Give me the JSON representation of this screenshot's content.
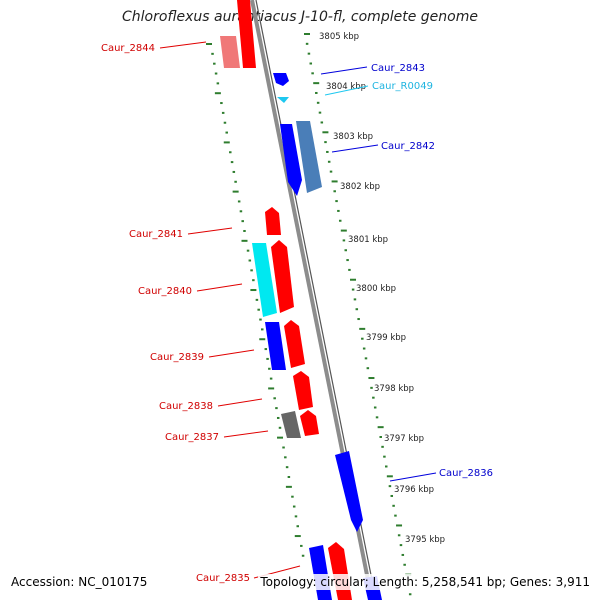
{
  "title": "Chloroflexus aurantiacus J-10-fl, complete genome",
  "footer": {
    "accession": "Accession: NC_010175",
    "topology": "Topology: circular; Length: 5,258,541 bp; Genes: 3,911"
  },
  "colors": {
    "backbone": "#888888",
    "ticks": "#2e7d2e",
    "forward_gene": "#ff0000",
    "reverse_gene": "#0000ff",
    "rna_gene": "#1ec8f0",
    "pseudo_gene": "#666666"
  },
  "kbp_labels": [
    "3805 kbp",
    "3804 kbp",
    "3803 kbp",
    "3802 kbp",
    "3801 kbp",
    "3800 kbp",
    "3799 kbp",
    "3798 kbp",
    "3797 kbp",
    "3796 kbp",
    "3795 kbp"
  ],
  "genes": [
    {
      "name": "Caur_2844",
      "strand": "forward",
      "color": "#ff0000"
    },
    {
      "name": "Caur_2843",
      "strand": "reverse",
      "color": "#0000ff"
    },
    {
      "name": "Caur_R0049",
      "strand": "reverse",
      "color": "#1ec8f0"
    },
    {
      "name": "Caur_2842",
      "strand": "reverse",
      "color": "#0000ff"
    },
    {
      "name": "Caur_2841",
      "strand": "forward",
      "color": "#ff0000"
    },
    {
      "name": "Caur_2840",
      "strand": "forward",
      "color": "#ff0000"
    },
    {
      "name": "Caur_2839",
      "strand": "forward",
      "color": "#ff0000"
    },
    {
      "name": "Caur_2838",
      "strand": "forward",
      "color": "#ff0000"
    },
    {
      "name": "Caur_2837",
      "strand": "forward",
      "color": "#ff0000"
    },
    {
      "name": "Caur_2836",
      "strand": "reverse",
      "color": "#0000ff"
    },
    {
      "name": "Caur_2835",
      "strand": "forward",
      "color": "#ff0000"
    }
  ]
}
